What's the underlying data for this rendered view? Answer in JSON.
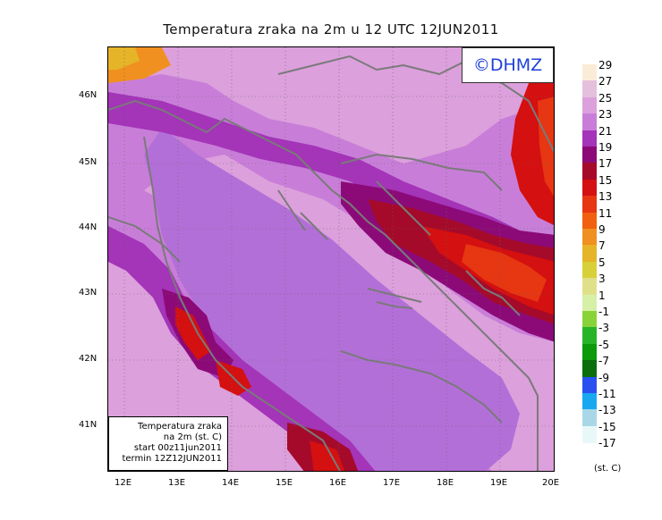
{
  "title": "Temperatura zraka na 2m u 12 UTC 12JUN2011",
  "logo": "©DHMZ",
  "info": [
    "Temperatura zraka",
    "na 2m (st. C)",
    "start 00z11jun2011",
    "termin 12Z12JUN2011"
  ],
  "lat_labels": [
    "46N",
    "45N",
    "44N",
    "43N",
    "42N",
    "41N"
  ],
  "lon_labels": [
    "12E",
    "13E",
    "14E",
    "15E",
    "16E",
    "17E",
    "18E",
    "19E",
    "20E"
  ],
  "legend": {
    "labels": [
      "29",
      "27",
      "25",
      "23",
      "21",
      "19",
      "17",
      "15",
      "13",
      "11",
      "9",
      "7",
      "5",
      "3",
      "1",
      "-1",
      "-3",
      "-5",
      "-7",
      "-9",
      "-11",
      "-13",
      "-15",
      "-17"
    ],
    "colors": [
      "#fbecd8",
      "#e4c0dc",
      "#dca0dc",
      "#c87ed8",
      "#a434b8",
      "#8c0a78",
      "#a50a2a",
      "#d41010",
      "#e63612",
      "#f06010",
      "#f09020",
      "#e6b428",
      "#d8d038",
      "#e0e08a",
      "#d6f0a8",
      "#88d438",
      "#28b428",
      "#0a9a0a",
      "#0a6e0a",
      "#2850f0",
      "#18a8f0",
      "#a8d8e8",
      "#e8f8f8"
    ],
    "unit": "(st. C)"
  },
  "colors": {
    "sea": "#b36fd8",
    "coast": "#7a7a7a",
    "logo_text": "#1f3fd8"
  }
}
